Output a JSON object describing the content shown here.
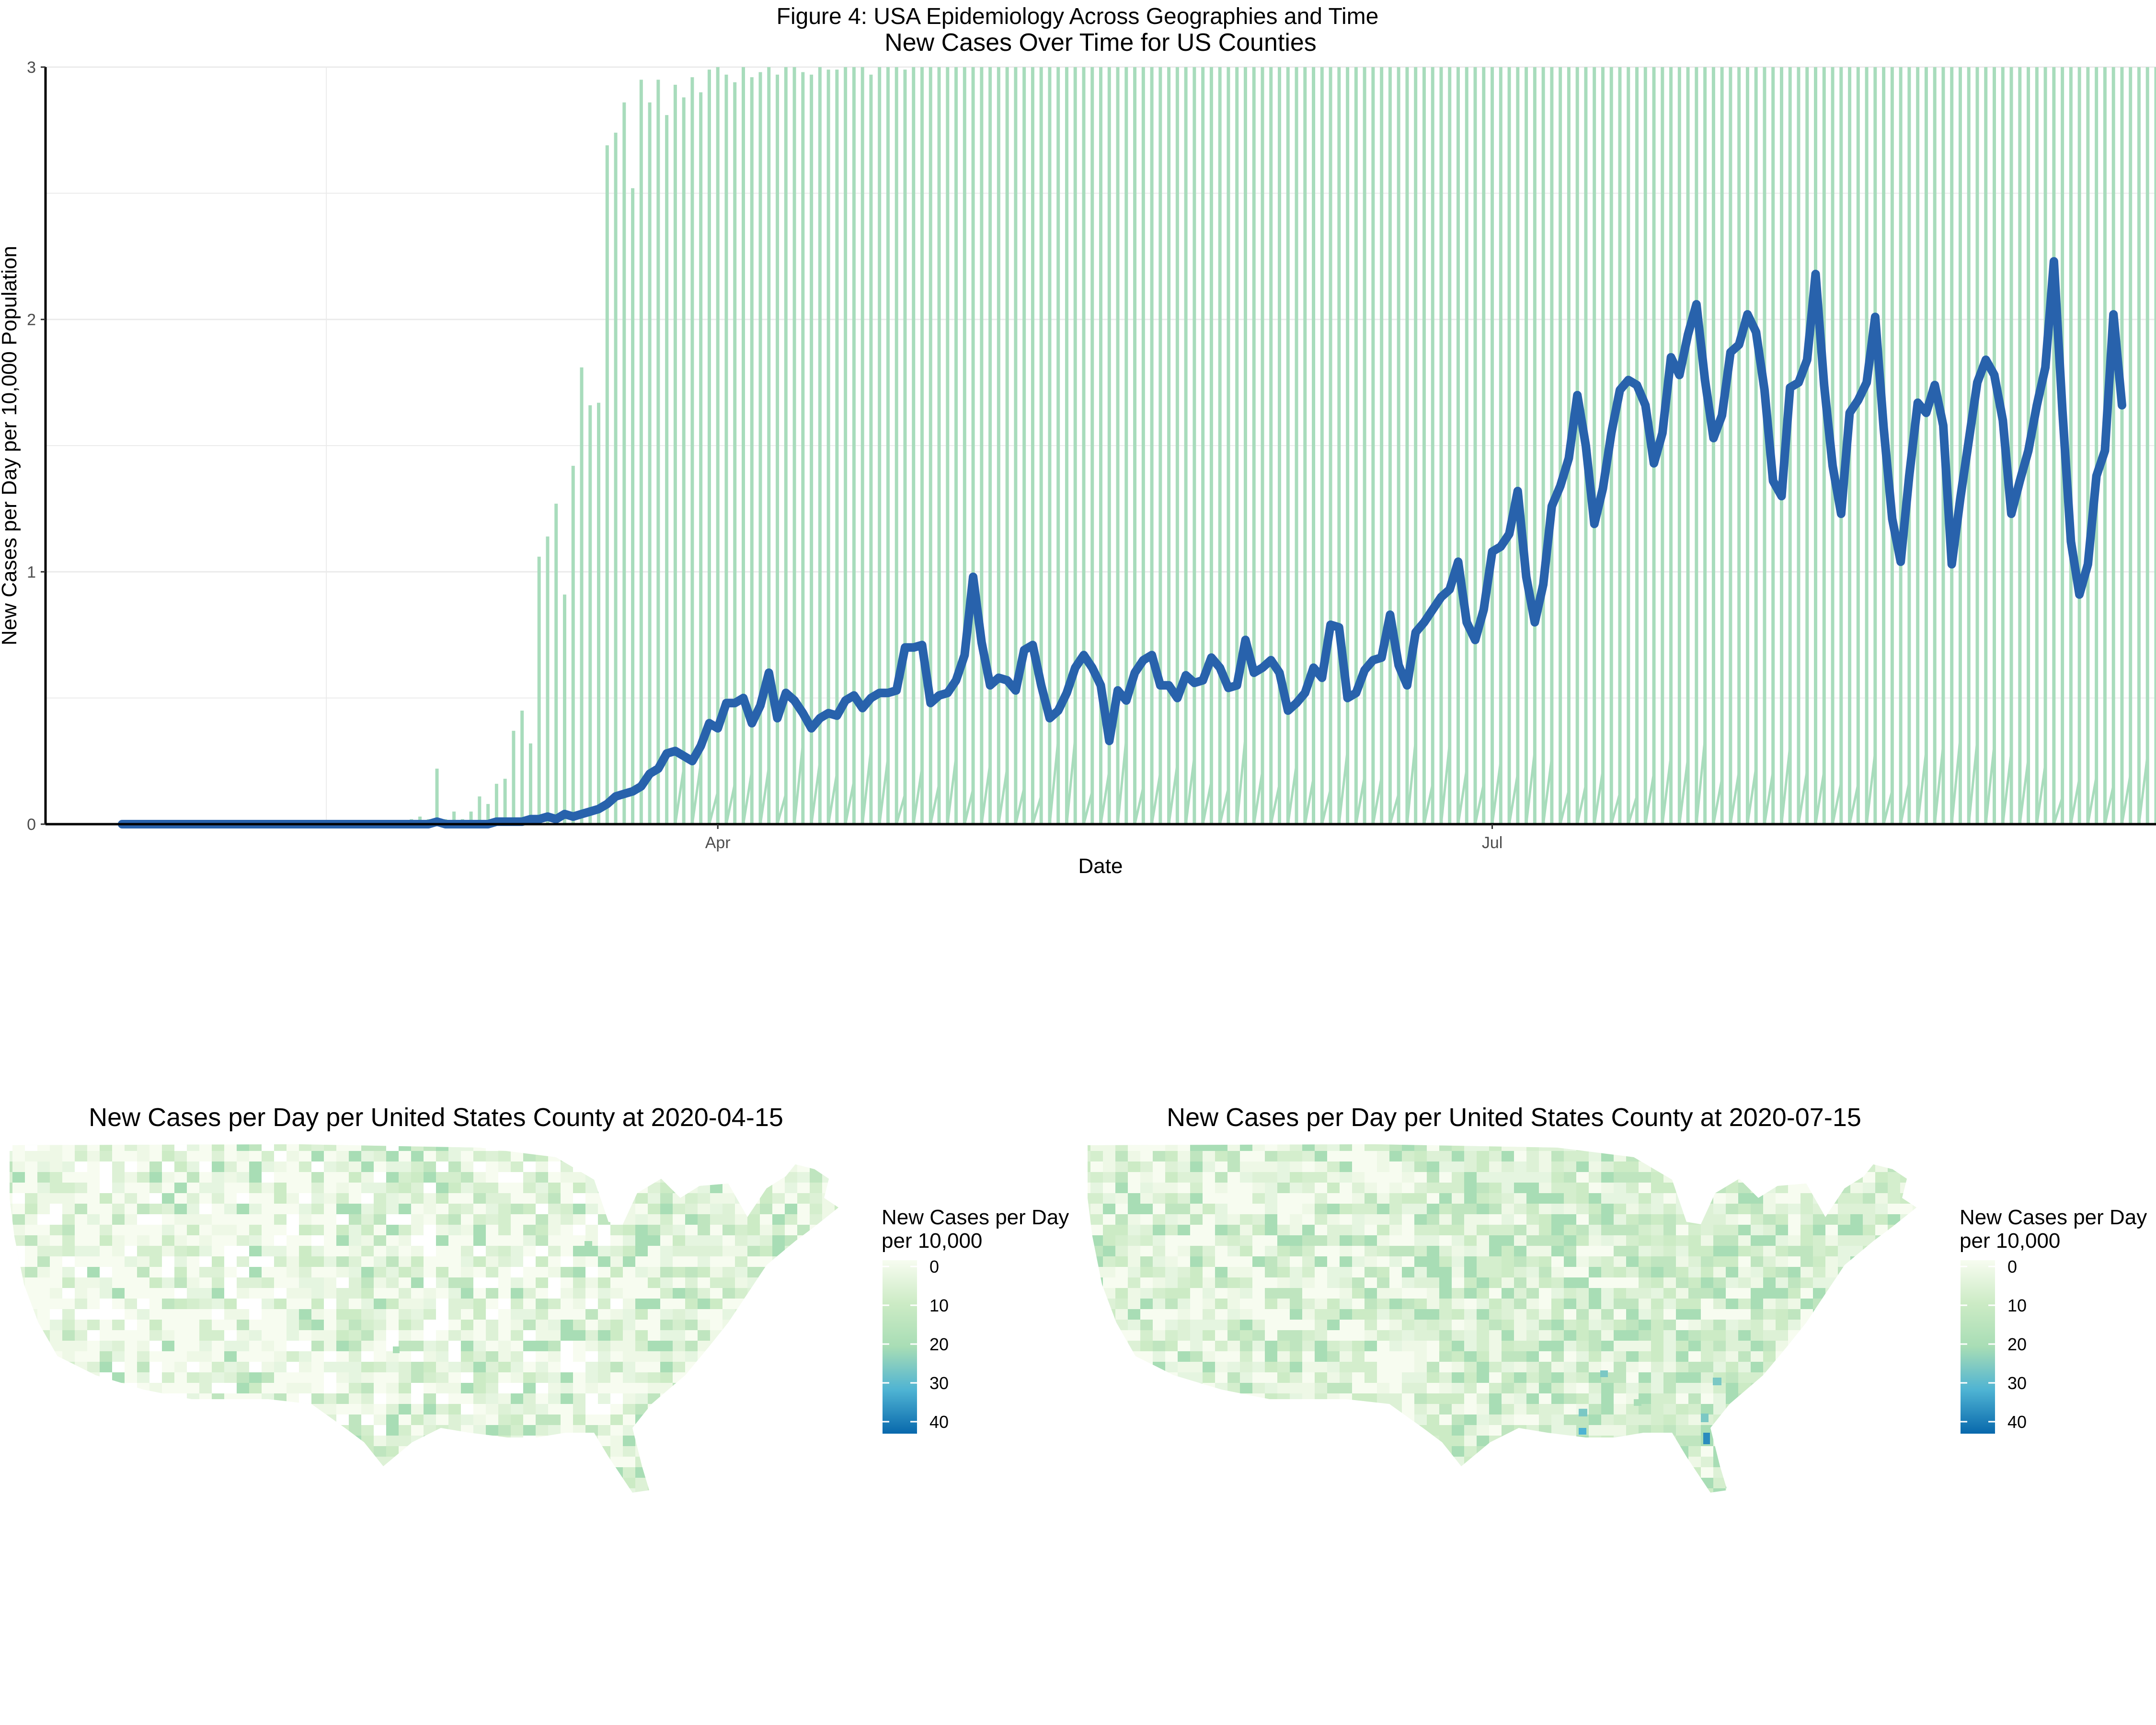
{
  "figure": {
    "supertitle": "Figure 4: USA Epidemiology Across Geographies and Time"
  },
  "colors": {
    "county_lines": "#a8dcbc",
    "mean_line": "#2862ac",
    "grid": "#ebebeb",
    "map_fill_low": "#eef8e6",
    "map_fill_mid": "#ccebc5",
    "scale": [
      "#f7fcf0",
      "#ccebc5",
      "#a8ddb5",
      "#4eb3d3",
      "#0868ac"
    ]
  },
  "chart_data": [
    {
      "type": "line",
      "title": "New Cases Over Time for US Counties",
      "xlabel": "Date",
      "ylabel": "New Cases per Day per 10,000 Population",
      "ylim": [
        0,
        3
      ],
      "y_ticks": [
        "0",
        "1",
        "2",
        "3"
      ],
      "x_ticks": [
        {
          "label": "Apr",
          "date": "2020-04-01"
        },
        {
          "label": "Jul",
          "date": "2020-07-01"
        }
      ],
      "x_range": [
        "2020-01-13",
        "2020-09-17"
      ],
      "grid": true,
      "series": [
        {
          "role": "county-daily-values",
          "start_date": "2020-01-22",
          "values": [
            0,
            0,
            0,
            0,
            0,
            0,
            0,
            0,
            0,
            0,
            0,
            0,
            0,
            0,
            0,
            0,
            0,
            0,
            0,
            0,
            0,
            0,
            0,
            0,
            0,
            0,
            0,
            0,
            0,
            0,
            0,
            0,
            0.01,
            0.01,
            0.02,
            0.03,
            0.02,
            0.22,
            0.02,
            0.05,
            0.02,
            0.05,
            0.11,
            0.08,
            0.16,
            0.18,
            0.37,
            0.45,
            0.32,
            1.06,
            1.14,
            1.27,
            0.91,
            1.42,
            1.81,
            1.66,
            1.67,
            2.69,
            2.74,
            2.86,
            2.52,
            2.95,
            2.86,
            2.95,
            2.81,
            2.93,
            2.88,
            2.96,
            2.9,
            2.99,
            3,
            2.97,
            2.94,
            3,
            2.96,
            2.98,
            3,
            2.97,
            3,
            3,
            2.98,
            2.97,
            3,
            2.99,
            2.99,
            3,
            3,
            3,
            2.97,
            3,
            3,
            3,
            2.99,
            3,
            3,
            3,
            3,
            3,
            3,
            3,
            3,
            3,
            3,
            3,
            3,
            3,
            3,
            3,
            3,
            3,
            3,
            3,
            3,
            3,
            3,
            3,
            3,
            3,
            3,
            3,
            3,
            3,
            3,
            3,
            3,
            3,
            3,
            3,
            3,
            3,
            3,
            3,
            3,
            3,
            3,
            3,
            3,
            3,
            3,
            3,
            3,
            3,
            3,
            3,
            3,
            3,
            3,
            3,
            3,
            3,
            3,
            3,
            3,
            3,
            3,
            3,
            3,
            3,
            3,
            3,
            3,
            3,
            3,
            3,
            3,
            3,
            3,
            3,
            3,
            3,
            3,
            3,
            3,
            3,
            3,
            3,
            3,
            3,
            3,
            3,
            3,
            3,
            3,
            3,
            3,
            3,
            3,
            3,
            3,
            3,
            3,
            3,
            3,
            3,
            3,
            3,
            3,
            3,
            3,
            3,
            3,
            3,
            3,
            3,
            3,
            3,
            3,
            3,
            3,
            3,
            3,
            3,
            3,
            3,
            3,
            3,
            3,
            3,
            3,
            3,
            3,
            3,
            3,
            3,
            3,
            3,
            3,
            3,
            3,
            3,
            3,
            3,
            3,
            3,
            3,
            3,
            3,
            3,
            3,
            3,
            3,
            3,
            3,
            3,
            3,
            3,
            3,
            3,
            3,
            3,
            3,
            3,
            3,
            3,
            3,
            3,
            3,
            3,
            3,
            3,
            3,
            3,
            3,
            3,
            3,
            3,
            3
          ]
        },
        {
          "role": "mean",
          "start_date": "2020-01-22",
          "values": [
            0,
            0,
            0,
            0,
            0,
            0,
            0,
            0,
            0,
            0,
            0,
            0,
            0,
            0,
            0,
            0,
            0,
            0,
            0,
            0,
            0,
            0,
            0,
            0,
            0,
            0,
            0,
            0,
            0,
            0,
            0,
            0,
            0,
            0,
            0,
            0,
            0,
            0.01,
            0,
            0,
            0,
            0,
            0,
            0,
            0.01,
            0.01,
            0.01,
            0.01,
            0.02,
            0.02,
            0.03,
            0.02,
            0.04,
            0.03,
            0.04,
            0.05,
            0.06,
            0.08,
            0.11,
            0.12,
            0.13,
            0.15,
            0.2,
            0.22,
            0.28,
            0.29,
            0.27,
            0.25,
            0.31,
            0.4,
            0.38,
            0.48,
            0.48,
            0.5,
            0.4,
            0.47,
            0.6,
            0.42,
            0.52,
            0.49,
            0.44,
            0.38,
            0.42,
            0.44,
            0.43,
            0.49,
            0.51,
            0.46,
            0.5,
            0.52,
            0.52,
            0.53,
            0.7,
            0.7,
            0.71,
            0.48,
            0.51,
            0.52,
            0.57,
            0.67,
            0.98,
            0.72,
            0.55,
            0.58,
            0.57,
            0.53,
            0.69,
            0.71,
            0.55,
            0.42,
            0.45,
            0.52,
            0.62,
            0.67,
            0.62,
            0.55,
            0.33,
            0.53,
            0.49,
            0.6,
            0.65,
            0.67,
            0.55,
            0.55,
            0.5,
            0.59,
            0.56,
            0.57,
            0.66,
            0.62,
            0.54,
            0.55,
            0.73,
            0.6,
            0.62,
            0.65,
            0.6,
            0.45,
            0.48,
            0.52,
            0.62,
            0.58,
            0.79,
            0.78,
            0.5,
            0.52,
            0.61,
            0.65,
            0.66,
            0.83,
            0.63,
            0.55,
            0.76,
            0.8,
            0.85,
            0.9,
            0.93,
            1.04,
            0.8,
            0.73,
            0.85,
            1.08,
            1.1,
            1.15,
            1.32,
            0.98,
            0.8,
            0.95,
            1.26,
            1.34,
            1.45,
            1.7,
            1.5,
            1.19,
            1.33,
            1.55,
            1.72,
            1.76,
            1.74,
            1.66,
            1.43,
            1.55,
            1.85,
            1.78,
            1.94,
            2.06,
            1.76,
            1.53,
            1.62,
            1.87,
            1.9,
            2.02,
            1.95,
            1.72,
            1.36,
            1.3,
            1.73,
            1.75,
            1.84,
            2.18,
            1.74,
            1.42,
            1.23,
            1.63,
            1.68,
            1.75,
            2.01,
            1.57,
            1.21,
            1.04,
            1.38,
            1.67,
            1.63,
            1.74,
            1.58,
            1.03,
            1.29,
            1.52,
            1.75,
            1.84,
            1.78,
            1.6,
            1.23,
            1.36,
            1.48,
            1.66,
            1.81,
            2.23,
            1.64,
            1.12,
            0.91,
            1.03,
            1.38,
            1.48,
            2.02,
            1.66
          ]
        }
      ]
    }
  ],
  "maps": [
    {
      "title": "New Cases per Day per United States County at 2020-04-15",
      "legend_title": "New Cases per Day\nper 10,000",
      "legend_title_line1": "New Cases per Day",
      "legend_title_line2": "per 10,000",
      "legend_ticks": [
        "0",
        "10",
        "20",
        "30",
        "40"
      ]
    },
    {
      "title": "New Cases per Day per United States County at 2020-07-15",
      "legend_title": "New Cases per Day\nper 10,000",
      "legend_title_line1": "New Cases per Day",
      "legend_title_line2": "per 10,000",
      "legend_ticks": [
        "0",
        "10",
        "20",
        "30",
        "40"
      ]
    }
  ]
}
